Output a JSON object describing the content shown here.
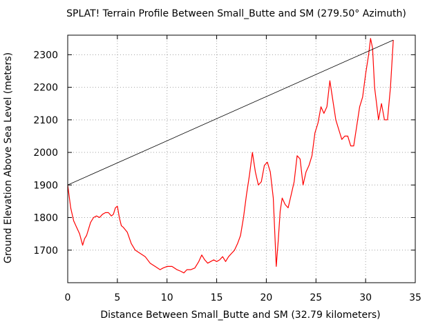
{
  "chart_data": {
    "type": "line",
    "title": "SPLAT! Terrain Profile Between Small_Butte and SM (279.50° Azimuth)",
    "xlabel": "Distance Between Small_Butte and SM (32.79 kilometers)",
    "ylabel": "Ground Elevation Above Sea Level (meters)",
    "xlim": [
      0,
      35
    ],
    "ylim": [
      1600,
      2360
    ],
    "xticks": [
      0,
      5,
      10,
      15,
      20,
      25,
      30,
      35
    ],
    "yticks": [
      1700,
      1800,
      1900,
      2000,
      2100,
      2200,
      2300
    ],
    "grid": true,
    "series": [
      {
        "color": "#ff0000",
        "x": [
          0,
          0.3,
          0.6,
          0.9,
          1.2,
          1.5,
          1.7,
          1.9,
          2.1,
          2.3,
          2.6,
          2.9,
          3.2,
          3.5,
          3.8,
          4.1,
          4.4,
          4.6,
          4.8,
          5.0,
          5.2,
          5.4,
          5.6,
          6.0,
          6.4,
          6.8,
          7.3,
          7.8,
          8.3,
          8.8,
          9.3,
          9.6,
          10.0,
          10.5,
          11.0,
          11.4,
          11.7,
          12.0,
          12.4,
          12.8,
          13.2,
          13.5,
          13.8,
          14.1,
          14.4,
          14.7,
          15.0,
          15.3,
          15.6,
          15.9,
          16.2,
          16.5,
          16.8,
          17.1,
          17.4,
          17.7,
          18.0,
          18.3,
          18.6,
          18.9,
          19.2,
          19.5,
          19.8,
          20.1,
          20.4,
          20.7,
          21.0,
          21.2,
          21.4,
          21.6,
          21.9,
          22.2,
          22.5,
          22.8,
          23.1,
          23.4,
          23.7,
          24.0,
          24.3,
          24.6,
          24.9,
          25.2,
          25.5,
          25.8,
          26.1,
          26.4,
          26.7,
          27.0,
          27.3,
          27.6,
          27.9,
          28.2,
          28.5,
          28.8,
          29.1,
          29.4,
          29.7,
          30.0,
          30.3,
          30.5,
          30.7,
          30.9,
          31.1,
          31.3,
          31.6,
          31.9,
          32.2,
          32.5,
          32.79
        ],
        "y": [
          1900,
          1830,
          1790,
          1770,
          1750,
          1715,
          1735,
          1745,
          1765,
          1785,
          1800,
          1805,
          1800,
          1810,
          1815,
          1815,
          1805,
          1810,
          1830,
          1835,
          1800,
          1775,
          1770,
          1755,
          1720,
          1700,
          1690,
          1680,
          1660,
          1650,
          1640,
          1645,
          1650,
          1650,
          1640,
          1635,
          1630,
          1640,
          1640,
          1645,
          1665,
          1685,
          1670,
          1660,
          1665,
          1670,
          1665,
          1670,
          1680,
          1665,
          1680,
          1690,
          1700,
          1720,
          1745,
          1800,
          1870,
          1930,
          2000,
          1940,
          1900,
          1910,
          1960,
          1970,
          1940,
          1860,
          1650,
          1730,
          1820,
          1860,
          1840,
          1830,
          1870,
          1910,
          1990,
          1980,
          1900,
          1940,
          1960,
          1990,
          2060,
          2090,
          2140,
          2120,
          2140,
          2220,
          2160,
          2100,
          2070,
          2040,
          2050,
          2050,
          2020,
          2020,
          2080,
          2140,
          2170,
          2240,
          2300,
          2350,
          2320,
          2200,
          2150,
          2100,
          2150,
          2100,
          2100,
          2200,
          2345
        ]
      },
      {
        "color": "#000000",
        "x": [
          0,
          32.79
        ],
        "y": [
          1900,
          2345
        ]
      }
    ]
  }
}
